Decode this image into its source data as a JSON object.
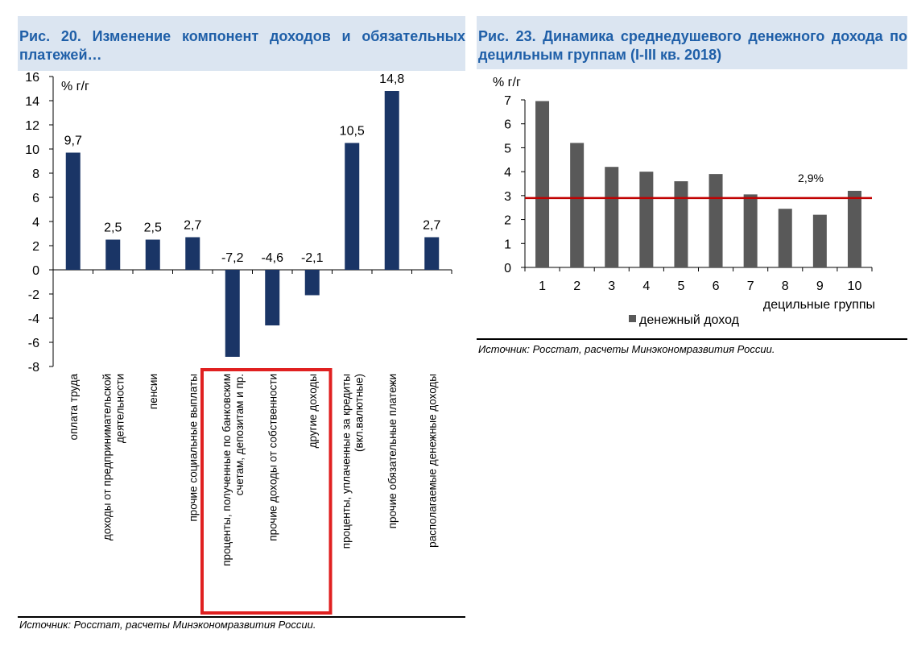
{
  "left_panel": {
    "title": "Рис.  20.  Изменение  компонент  доходов  и обязательных платежей…",
    "source": "Источник: Росстат, расчеты Минэкономразвития России."
  },
  "right_panel": {
    "title": "Рис.  23.  Динамика  среднедушевого  денежного дохода по децильным группам (I-III кв. 2018)",
    "source": "Источник: Росстат, расчеты Минэкономразвития России."
  },
  "colors": {
    "bar_left": "#1a3566",
    "bar_right": "#595959",
    "ref_line": "#c00000",
    "highlight_box": "#e02020",
    "title_text": "#1f5fa8",
    "title_bg": "#dbe5f1"
  },
  "chart_data": [
    {
      "type": "bar",
      "ylabel": "% г/г",
      "ylim": [
        -8,
        16
      ],
      "yticks": [
        -8,
        -6,
        -4,
        -2,
        0,
        2,
        4,
        6,
        8,
        10,
        12,
        14,
        16
      ],
      "categories": [
        "оплата труда",
        "доходы от предпринимательской деятельности",
        "пенсии",
        "прочие социальные выплаты",
        "проценты, полученные по банковским счетам, депозитам и пр.",
        "прочие доходы от собственности",
        "другие доходы",
        "проценты, уплаченные за кредиты (вкл.валютные)",
        "прочие обязательные платежи",
        "располагаемые денежные доходы"
      ],
      "category_lines": [
        [
          "оплата труда"
        ],
        [
          "доходы от предпринимательской",
          "деятельности"
        ],
        [
          "пенсии"
        ],
        [
          "прочие социальные выплаты"
        ],
        [
          "проценты, полученные по банковским",
          "счетам, депозитам и пр."
        ],
        [
          "прочие доходы от собственности"
        ],
        [
          "другие доходы"
        ],
        [
          "проценты, уплаченные за кредиты",
          "(вкл.валютные)"
        ],
        [
          "прочие обязательные платежи"
        ],
        [
          "располагаемые денежные доходы"
        ]
      ],
      "values": [
        9.7,
        2.5,
        2.5,
        2.7,
        -7.2,
        -4.6,
        -2.1,
        10.5,
        14.8,
        2.7
      ],
      "value_labels": [
        "9,7",
        "2,5",
        "2,5",
        "2,7",
        "-7,2",
        "-4,6",
        "-2,1",
        "10,5",
        "14,8",
        "2,7"
      ],
      "highlighted_categories": [
        4,
        5,
        6
      ],
      "grid": false
    },
    {
      "type": "bar",
      "ylabel": "% г/г",
      "xlabel": "децильные группы",
      "ylim": [
        0,
        7
      ],
      "yticks": [
        0,
        1,
        2,
        3,
        4,
        5,
        6,
        7
      ],
      "categories": [
        "1",
        "2",
        "3",
        "4",
        "5",
        "6",
        "7",
        "8",
        "9",
        "10"
      ],
      "series": [
        {
          "name": "денежный доход",
          "values": [
            6.95,
            5.2,
            4.2,
            4.0,
            3.6,
            3.9,
            3.05,
            2.45,
            2.2,
            3.2
          ]
        }
      ],
      "reference_line": {
        "value": 2.9,
        "label": "2,9%"
      },
      "legend": "bottom",
      "grid": false
    }
  ]
}
